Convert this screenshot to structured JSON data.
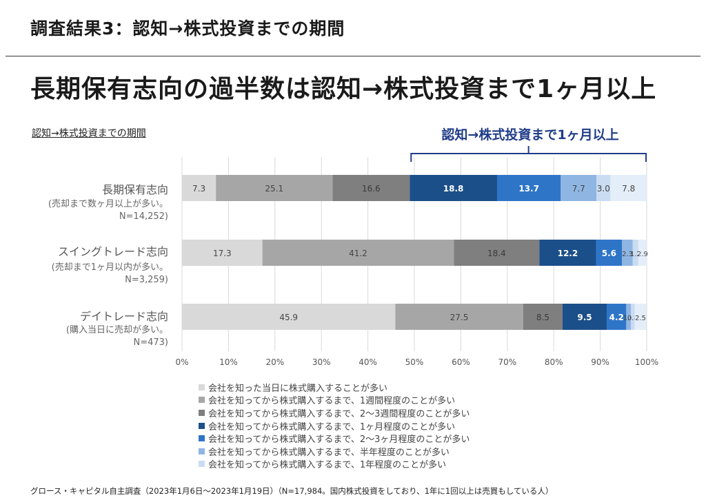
{
  "header": {
    "section_title": "調査結果3：認知→株式投資までの期間",
    "headline": "長期保有志向の過半数は認知→株式投資まで1ヶ月以上"
  },
  "chart_subtitle": "認知→株式投資までの期間",
  "callout": {
    "label": "認知→株式投資まで1ヶ月以上",
    "from_pct": 49,
    "to_pct": 100
  },
  "categories": [
    {
      "name": "長期保有志向",
      "note": [
        "(売却まで数ヶ月以上が多い。",
        "N=14,252)"
      ]
    },
    {
      "name": "スイングトレード志向",
      "note": [
        "(売却まで1ヶ月以内が多い。",
        "N=3,259)"
      ]
    },
    {
      "name": "デイトレード志向",
      "note": [
        "(購入当日に売却が多い。",
        "N=473)"
      ]
    }
  ],
  "chart_data": {
    "type": "bar",
    "orientation": "horizontal",
    "stacked": true,
    "normalized": true,
    "title": "認知→株式投資までの期間",
    "categories": [
      "長期保有志向",
      "スイングトレード志向",
      "デイトレード志向"
    ],
    "x_ticks": [
      "0%",
      "10%",
      "20%",
      "30%",
      "40%",
      "50%",
      "60%",
      "70%",
      "80%",
      "90%",
      "100%"
    ],
    "xlim": [
      0,
      100
    ],
    "grid": true,
    "legend_position": "bottom",
    "series": [
      {
        "name": "会社を知った当日に株式購入することが多い",
        "color": "#d9d9d9",
        "label_color": "#444444",
        "values": [
          7.3,
          17.3,
          45.9
        ],
        "labels": [
          "7.3",
          "17.3",
          "45.9"
        ]
      },
      {
        "name": "会社を知ってから株式購入するまで、1週間程度のことが多い",
        "color": "#a6a6a6",
        "label_color": "#444444",
        "values": [
          25.1,
          41.2,
          27.5
        ],
        "labels": [
          "25.1",
          "41.2",
          "27.5"
        ]
      },
      {
        "name": "会社を知ってから株式購入するまで、2〜3週間程度のことが多い",
        "color": "#7f7f7f",
        "label_color": "#3a3a3a",
        "values": [
          16.6,
          18.4,
          8.5
        ],
        "labels": [
          "16.6",
          "18.4",
          "8.5"
        ]
      },
      {
        "name": "会社を知ってから株式購入するまで、1ヶ月程度のことが多い",
        "color": "#1b4f8a",
        "label_color": "#ffffff",
        "values": [
          18.8,
          12.2,
          9.5
        ],
        "labels": [
          "18.8",
          "12.2",
          "9.5"
        ]
      },
      {
        "name": "会社を知ってから株式購入するまで、2〜3ヶ月程度のことが多い",
        "color": "#2e75c8",
        "label_color": "#ffffff",
        "values": [
          13.7,
          5.6,
          4.2
        ],
        "labels": [
          "13.7",
          "5.6",
          "4.2"
        ]
      },
      {
        "name": "会社を知ってから株式購入するまで、半年程度のことが多い",
        "color": "#8fb5e3",
        "label_color": "#444444",
        "values": [
          7.7,
          2.3,
          1.0
        ],
        "labels": [
          "7.7",
          "2.3",
          "1.0"
        ]
      },
      {
        "name": "会社を知ってから株式購入するまで、1年程度のことが多い",
        "color": "#c9dcf2",
        "label_color": "#444444",
        "values": [
          3.0,
          1.2,
          0.8
        ],
        "labels": [
          "3.0",
          "1.2",
          "0.8"
        ]
      },
      {
        "name": "",
        "color": "#e4eef9",
        "label_color": "#444444",
        "values": [
          7.8,
          2.9,
          2.5
        ],
        "labels": [
          "7.8",
          "2.9",
          "2.5"
        ]
      }
    ]
  },
  "footnote": "グロース・キャピタル自主調査（2023年1月6日〜2023年1月19日）（N=17,984。国内株式投資をしており、1年に1回以上は売買もしている人）"
}
